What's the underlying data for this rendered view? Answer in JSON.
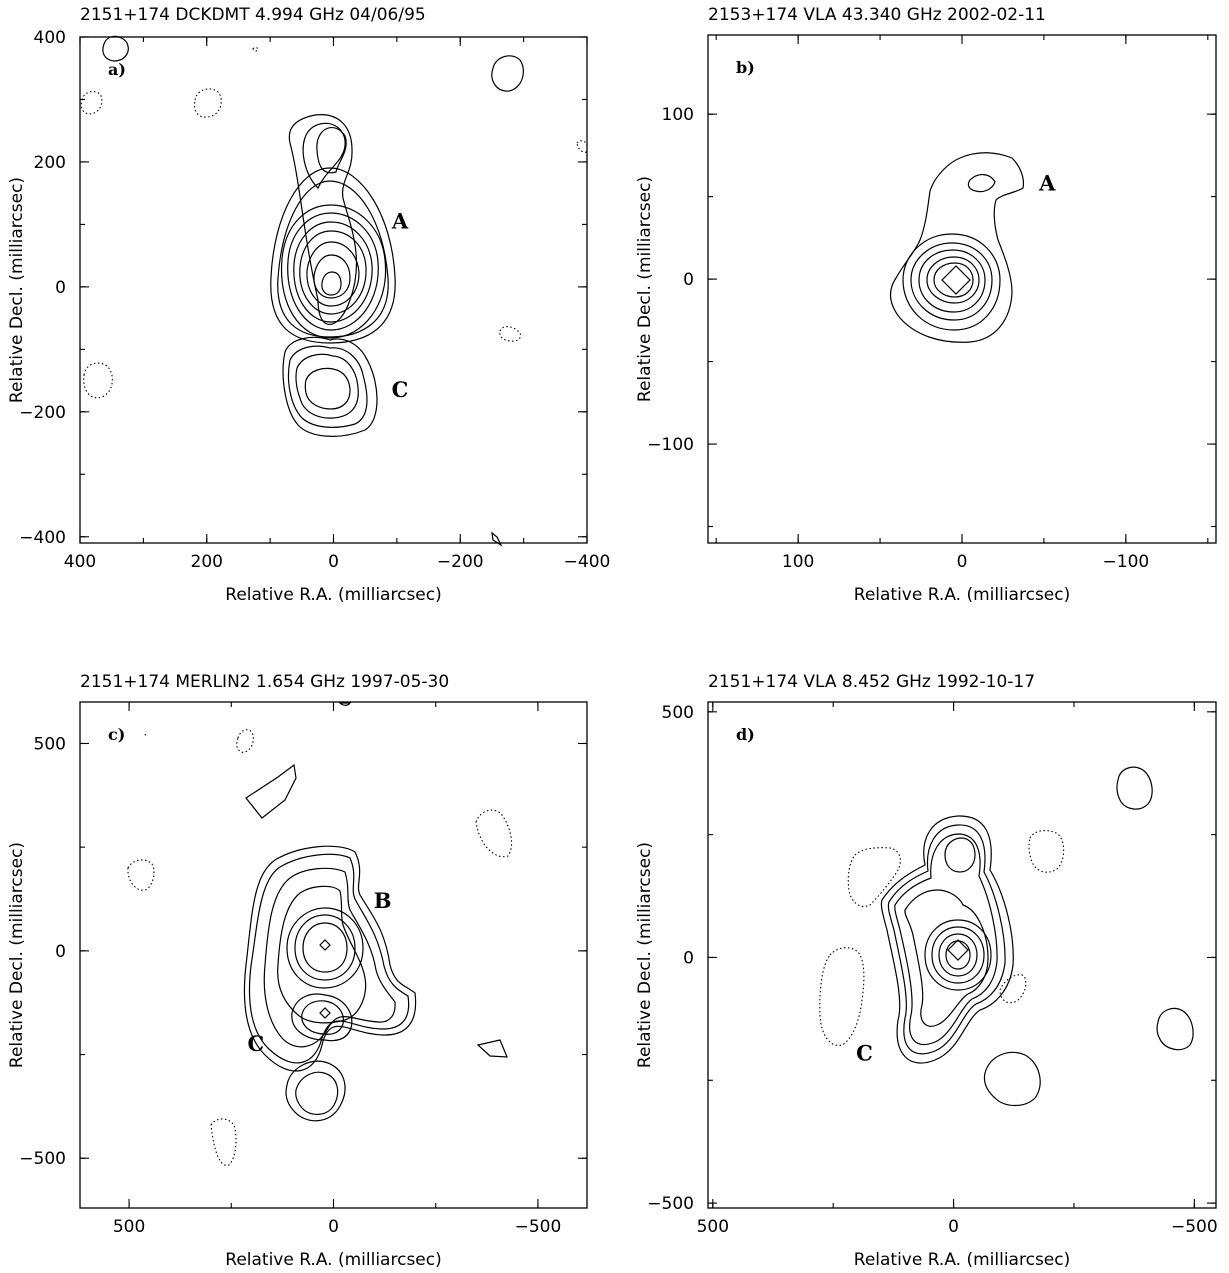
{
  "panels": [
    {
      "id": "a",
      "header": "2151+174   DCKDMT   4.994 GHz   04/06/95",
      "panel_label": "a)",
      "xlabel": "Relative R.A. (milliarcsec)",
      "ylabel": "Relative Decl. (milliarcsec)",
      "xlim": [
        400,
        -400
      ],
      "ylim": [
        -410,
        400
      ],
      "xticks": [
        "400",
        "200",
        "0",
        "−200",
        "−400"
      ],
      "xtick_values": [
        400,
        200,
        0,
        -200,
        -400
      ],
      "yticks": [
        "−400",
        "−200",
        "0",
        "200",
        "400"
      ],
      "ytick_values": [
        -400,
        -200,
        0,
        200,
        400
      ],
      "components": [
        {
          "label": "A",
          "x": -105,
          "y": 105
        },
        {
          "label": "C",
          "x": -105,
          "y": -165
        }
      ]
    },
    {
      "id": "b",
      "header": "2153+174   VLA   43.340 GHz   2002-02-11",
      "panel_label": "b)",
      "xlabel": "Relative R.A. (milliarcsec)",
      "ylabel": "Relative Decl. (milliarcsec)",
      "xlim": [
        155,
        -155
      ],
      "ylim": [
        -160,
        148
      ],
      "xticks": [
        "100",
        "0",
        "−100"
      ],
      "xtick_values": [
        100,
        0,
        -100
      ],
      "yticks": [
        "−100",
        "0",
        "100"
      ],
      "ytick_values": [
        -100,
        0,
        100
      ],
      "components": [
        {
          "label": "A",
          "x": -52,
          "y": 58
        }
      ]
    },
    {
      "id": "c",
      "header": "2151+174   MERLIN2   1.654 GHz   1997-05-30",
      "panel_label": "c)",
      "xlabel": "Relative R.A. (milliarcsec)",
      "ylabel": "Relative Decl. (milliarcsec)",
      "xlim": [
        620,
        -620
      ],
      "ylim": [
        -620,
        600
      ],
      "xticks": [
        "500",
        "0",
        "−500"
      ],
      "xtick_values": [
        500,
        0,
        -500
      ],
      "yticks": [
        "−500",
        "0",
        "500"
      ],
      "ytick_values": [
        -500,
        0,
        500
      ],
      "components": [
        {
          "label": "B",
          "x": -120,
          "y": 120
        },
        {
          "label": "C",
          "x": 190,
          "y": -225
        }
      ]
    },
    {
      "id": "d",
      "header": "2151+174   VLA   8.452 GHz   1992-10-17",
      "panel_label": "d)",
      "xlabel": "Relative R.A. (milliarcsec)",
      "ylabel": "Relative Decl. (milliarcsec)",
      "xlim": [
        510,
        -545
      ],
      "ylim": [
        -510,
        520
      ],
      "xticks": [
        "500",
        "0",
        "−500"
      ],
      "xtick_values": [
        500,
        0,
        -500
      ],
      "yticks": [
        "−500",
        "0",
        "500"
      ],
      "ytick_values": [
        -500,
        0,
        500
      ],
      "components": [
        {
          "label": "C",
          "x": 185,
          "y": -195
        }
      ]
    }
  ]
}
